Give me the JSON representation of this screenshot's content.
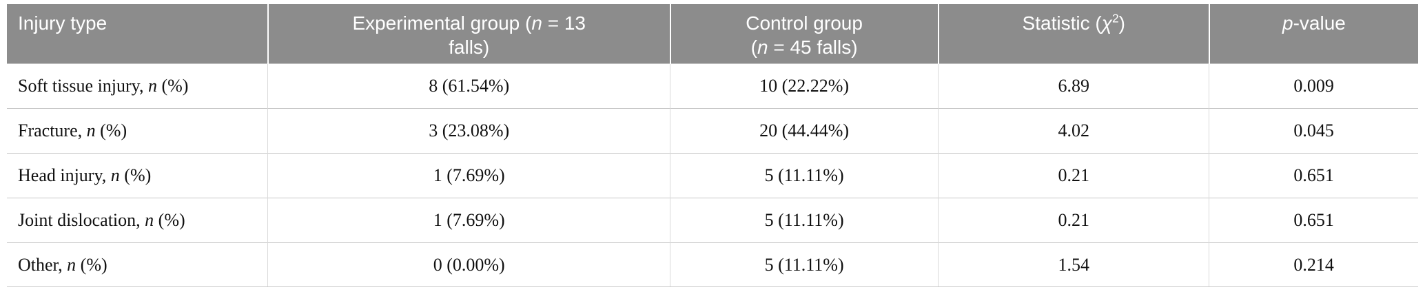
{
  "colors": {
    "header_bg": "#8c8c8c",
    "header_text": "#ffffff",
    "row_divider": "#c6c6c6",
    "column_divider": "#d9d9d9"
  },
  "table": {
    "headers": [
      "Injury type",
      "Experimental group (<i>n</i> = 13<br>falls)",
      "Control group<br>(<i>n</i> = 45 falls)",
      "Statistic (<i>χ</i><sup>2</sup>)",
      "<i>p</i>-value"
    ],
    "rows": [
      {
        "cells": [
          "Soft tissue injury, <i>n</i> (%)",
          "8 (61.54%)",
          "10 (22.22%)",
          "6.89",
          "0.009"
        ]
      },
      {
        "cells": [
          "Fracture, <i>n</i> (%)",
          "3 (23.08%)",
          "20 (44.44%)",
          "4.02",
          "0.045"
        ]
      },
      {
        "cells": [
          "Head injury, <i>n</i> (%)",
          "1 (7.69%)",
          "5 (11.11%)",
          "0.21",
          "0.651"
        ]
      },
      {
        "cells": [
          "Joint dislocation, <i>n</i> (%)",
          "1 (7.69%)",
          "5 (11.11%)",
          "0.21",
          "0.651"
        ]
      },
      {
        "cells": [
          "Other, <i>n</i> (%)",
          "0 (0.00%)",
          "5 (11.11%)",
          "1.54",
          "0.214"
        ]
      }
    ]
  }
}
